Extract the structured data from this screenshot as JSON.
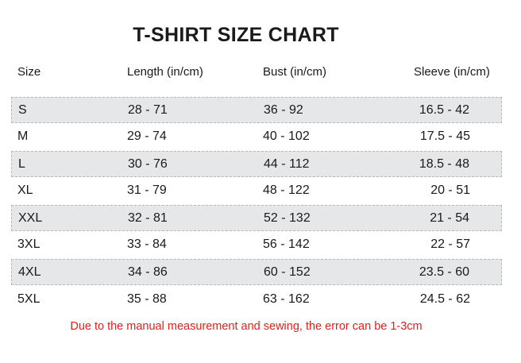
{
  "title": "T-SHIRT SIZE CHART",
  "headers": [
    "Size",
    "Length (in/cm)",
    "Bust (in/cm)",
    "Sleeve (in/cm)"
  ],
  "rows": [
    [
      "S",
      "28 - 71",
      "36 - 92",
      "16.5 - 42"
    ],
    [
      "M",
      "29 - 74",
      "40 - 102",
      "17.5 - 45"
    ],
    [
      "L",
      "30 - 76",
      "44 - 112",
      "18.5 - 48"
    ],
    [
      "XL",
      "31 - 79",
      "48 - 122",
      "20 - 51"
    ],
    [
      "XXL",
      "32 - 81",
      "52 - 132",
      "21 - 54"
    ],
    [
      "3XL",
      "33 - 84",
      "56 - 142",
      "22 - 57"
    ],
    [
      "4XL",
      "34 - 86",
      "60 - 152",
      "23.5 - 60"
    ],
    [
      "5XL",
      "35 - 88",
      "63 - 162",
      "24.5 - 62"
    ]
  ],
  "note": "Due to the manual measurement and sewing, the error can be 1-3cm",
  "colors": {
    "note": "#e0201b",
    "shaded_row": "#e6e7e9"
  }
}
